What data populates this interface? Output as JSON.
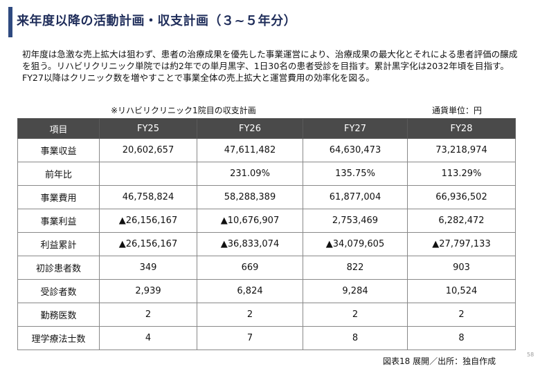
{
  "title": "来年度以降の活動計画・収支計画（３~５年分）",
  "intro": "初年度は急激な売上拡大は狙わず、患者の治療成果を優先した事業運営により、治療成果の最大化とそれによる患者評価の醸成を狙う。リハビリクリニック単院では約2年での単月黒字、1日30名の患者受診を目指す。累計黒字化は2032年頃を目指す。FY27以降はクリニック数を増やすことで事業全体の売上拡大と運営費用の効率化を図る。",
  "table_caption": "※リハビリクリニック1院目の収支計画",
  "currency_unit": "通貨単位：円",
  "table": {
    "headers": [
      "項目",
      "FY25",
      "FY26",
      "FY27",
      "FY28"
    ],
    "rows": [
      [
        "事業収益",
        "20,602,657",
        "47,611,482",
        "64,630,473",
        "73,218,974"
      ],
      [
        "前年比",
        "",
        "231.09%",
        "135.75%",
        "113.29%"
      ],
      [
        "事業費用",
        "46,758,824",
        "58,288,389",
        "61,877,004",
        "66,936,502"
      ],
      [
        "事業利益",
        "▲26,156,167",
        "▲10,676,907",
        "2,753,469",
        "6,282,472"
      ],
      [
        "利益累計",
        "▲26,156,167",
        "▲36,833,074",
        "▲34,079,605",
        "▲27,797,133"
      ],
      [
        "初診患者数",
        "349",
        "669",
        "822",
        "903"
      ],
      [
        "受診者数",
        "2,939",
        "6,824",
        "9,284",
        "10,524"
      ],
      [
        "勤務医数",
        "2",
        "2",
        "2",
        "2"
      ],
      [
        "理学療法士数",
        "4",
        "7",
        "8",
        "8"
      ]
    ]
  },
  "source": "図表18 展開／出所：独自作成",
  "page_number": "58"
}
